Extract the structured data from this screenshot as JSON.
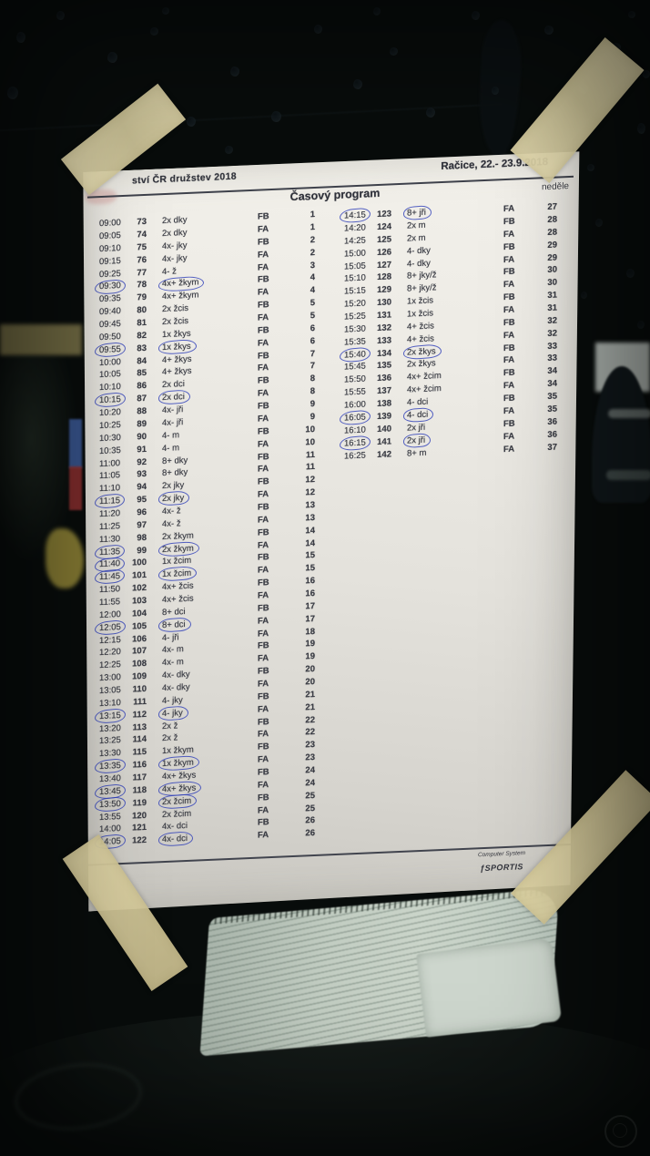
{
  "header": {
    "event_title_partial": "ství ČR družstev 2018",
    "location_date": "Račice,  22.- 23.9.2018",
    "program_title": "Časový program",
    "day_label": "neděle"
  },
  "footer": {
    "brand_line1": "Computer System",
    "brand_logo_glyph": "ƒ",
    "brand_line2": "SPORTIS"
  },
  "colors": {
    "ink_circle_blue": "#2c3cb8",
    "tape_beige": "#ddd3a6",
    "paper_white": "#edebe5"
  },
  "schedule": {
    "left": [
      {
        "t": "09:00",
        "n": "73",
        "e": "2x dky",
        "f": "FB",
        "r": "1",
        "tc": false,
        "ec": false
      },
      {
        "t": "09:05",
        "n": "74",
        "e": "2x dky",
        "f": "FA",
        "r": "1",
        "tc": false,
        "ec": false
      },
      {
        "t": "09:10",
        "n": "75",
        "e": "4x- jky",
        "f": "FB",
        "r": "2",
        "tc": false,
        "ec": false
      },
      {
        "t": "09:15",
        "n": "76",
        "e": "4x- jky",
        "f": "FA",
        "r": "2",
        "tc": false,
        "ec": false
      },
      {
        "t": "09:25",
        "n": "77",
        "e": "4- ž",
        "f": "FA",
        "r": "3",
        "tc": false,
        "ec": false
      },
      {
        "t": "09:30",
        "n": "78",
        "e": "4x+ žkym",
        "f": "FB",
        "r": "4",
        "tc": true,
        "ec": true
      },
      {
        "t": "09:35",
        "n": "79",
        "e": "4x+ žkym",
        "f": "FA",
        "r": "4",
        "tc": false,
        "ec": false
      },
      {
        "t": "09:40",
        "n": "80",
        "e": "2x žcis",
        "f": "FB",
        "r": "5",
        "tc": false,
        "ec": false
      },
      {
        "t": "09:45",
        "n": "81",
        "e": "2x žcis",
        "f": "FA",
        "r": "5",
        "tc": false,
        "ec": false
      },
      {
        "t": "09:50",
        "n": "82",
        "e": "1x žkys",
        "f": "FB",
        "r": "6",
        "tc": false,
        "ec": false
      },
      {
        "t": "09:55",
        "n": "83",
        "e": "1x žkys",
        "f": "FA",
        "r": "6",
        "tc": true,
        "ec": true
      },
      {
        "t": "10:00",
        "n": "84",
        "e": "4+ žkys",
        "f": "FB",
        "r": "7",
        "tc": false,
        "ec": false
      },
      {
        "t": "10:05",
        "n": "85",
        "e": "4+ žkys",
        "f": "FA",
        "r": "7",
        "tc": false,
        "ec": false
      },
      {
        "t": "10:10",
        "n": "86",
        "e": "2x dci",
        "f": "FB",
        "r": "8",
        "tc": false,
        "ec": false
      },
      {
        "t": "10:15",
        "n": "87",
        "e": "2x dci",
        "f": "FA",
        "r": "8",
        "tc": true,
        "ec": true
      },
      {
        "t": "10:20",
        "n": "88",
        "e": "4x- jři",
        "f": "FB",
        "r": "9",
        "tc": false,
        "ec": false
      },
      {
        "t": "10:25",
        "n": "89",
        "e": "4x- jři",
        "f": "FA",
        "r": "9",
        "tc": false,
        "ec": false
      },
      {
        "t": "10:30",
        "n": "90",
        "e": "4- m",
        "f": "FB",
        "r": "10",
        "tc": false,
        "ec": false
      },
      {
        "t": "10:35",
        "n": "91",
        "e": "4- m",
        "f": "FA",
        "r": "10",
        "tc": false,
        "ec": false
      },
      {
        "t": "11:00",
        "n": "92",
        "e": "8+ dky",
        "f": "FB",
        "r": "11",
        "tc": false,
        "ec": false
      },
      {
        "t": "11:05",
        "n": "93",
        "e": "8+ dky",
        "f": "FA",
        "r": "11",
        "tc": false,
        "ec": false
      },
      {
        "t": "11:10",
        "n": "94",
        "e": "2x jky",
        "f": "FB",
        "r": "12",
        "tc": false,
        "ec": false
      },
      {
        "t": "11:15",
        "n": "95",
        "e": "2x jky",
        "f": "FA",
        "r": "12",
        "tc": true,
        "ec": true
      },
      {
        "t": "11:20",
        "n": "96",
        "e": "4x- ž",
        "f": "FB",
        "r": "13",
        "tc": false,
        "ec": false
      },
      {
        "t": "11:25",
        "n": "97",
        "e": "4x- ž",
        "f": "FA",
        "r": "13",
        "tc": false,
        "ec": false
      },
      {
        "t": "11:30",
        "n": "98",
        "e": "2x žkym",
        "f": "FB",
        "r": "14",
        "tc": false,
        "ec": false
      },
      {
        "t": "11:35",
        "n": "99",
        "e": "2x žkym",
        "f": "FA",
        "r": "14",
        "tc": true,
        "ec": true
      },
      {
        "t": "11:40",
        "n": "100",
        "e": "1x žcim",
        "f": "FB",
        "r": "15",
        "tc": true,
        "ec": false
      },
      {
        "t": "11:45",
        "n": "101",
        "e": "1x žcim",
        "f": "FA",
        "r": "15",
        "tc": true,
        "ec": true
      },
      {
        "t": "11:50",
        "n": "102",
        "e": "4x+ žcis",
        "f": "FB",
        "r": "16",
        "tc": false,
        "ec": false
      },
      {
        "t": "11:55",
        "n": "103",
        "e": "4x+ žcis",
        "f": "FA",
        "r": "16",
        "tc": false,
        "ec": false
      },
      {
        "t": "12:00",
        "n": "104",
        "e": "8+ dci",
        "f": "FB",
        "r": "17",
        "tc": false,
        "ec": false
      },
      {
        "t": "12:05",
        "n": "105",
        "e": "8+ dci",
        "f": "FA",
        "r": "17",
        "tc": true,
        "ec": true
      },
      {
        "t": "12:15",
        "n": "106",
        "e": "4- jři",
        "f": "FA",
        "r": "18",
        "tc": false,
        "ec": false
      },
      {
        "t": "12:20",
        "n": "107",
        "e": "4x- m",
        "f": "FB",
        "r": "19",
        "tc": false,
        "ec": false
      },
      {
        "t": "12:25",
        "n": "108",
        "e": "4x- m",
        "f": "FA",
        "r": "19",
        "tc": false,
        "ec": false
      },
      {
        "t": "13:00",
        "n": "109",
        "e": "4x- dky",
        "f": "FB",
        "r": "20",
        "tc": false,
        "ec": false
      },
      {
        "t": "13:05",
        "n": "110",
        "e": "4x- dky",
        "f": "FA",
        "r": "20",
        "tc": false,
        "ec": false
      },
      {
        "t": "13:10",
        "n": "111",
        "e": "4- jky",
        "f": "FB",
        "r": "21",
        "tc": false,
        "ec": false
      },
      {
        "t": "13:15",
        "n": "112",
        "e": "4- jky",
        "f": "FA",
        "r": "21",
        "tc": true,
        "ec": true
      },
      {
        "t": "13:20",
        "n": "113",
        "e": "2x ž",
        "f": "FB",
        "r": "22",
        "tc": false,
        "ec": false
      },
      {
        "t": "13:25",
        "n": "114",
        "e": "2x ž",
        "f": "FA",
        "r": "22",
        "tc": false,
        "ec": false
      },
      {
        "t": "13:30",
        "n": "115",
        "e": "1x žkym",
        "f": "FB",
        "r": "23",
        "tc": false,
        "ec": false
      },
      {
        "t": "13:35",
        "n": "116",
        "e": "1x žkym",
        "f": "FA",
        "r": "23",
        "tc": true,
        "ec": true
      },
      {
        "t": "13:40",
        "n": "117",
        "e": "4x+ žkys",
        "f": "FB",
        "r": "24",
        "tc": false,
        "ec": false
      },
      {
        "t": "13:45",
        "n": "118",
        "e": "4x+ žkys",
        "f": "FA",
        "r": "24",
        "tc": true,
        "ec": true
      },
      {
        "t": "13:50",
        "n": "119",
        "e": "2x žcim",
        "f": "FB",
        "r": "25",
        "tc": true,
        "ec": true
      },
      {
        "t": "13:55",
        "n": "120",
        "e": "2x žcim",
        "f": "FA",
        "r": "25",
        "tc": false,
        "ec": false
      },
      {
        "t": "14:00",
        "n": "121",
        "e": "4x- dci",
        "f": "FB",
        "r": "26",
        "tc": false,
        "ec": false
      },
      {
        "t": "14:05",
        "n": "122",
        "e": "4x- dci",
        "f": "FA",
        "r": "26",
        "tc": true,
        "ec": true
      }
    ],
    "right": [
      {
        "t": "14:15",
        "n": "123",
        "e": "8+ jři",
        "f": "FA",
        "r": "27",
        "tc": true,
        "ec": true
      },
      {
        "t": "14:20",
        "n": "124",
        "e": "2x m",
        "f": "FB",
        "r": "28",
        "tc": false,
        "ec": false
      },
      {
        "t": "14:25",
        "n": "125",
        "e": "2x m",
        "f": "FA",
        "r": "28",
        "tc": false,
        "ec": false
      },
      {
        "t": "15:00",
        "n": "126",
        "e": "4- dky",
        "f": "FB",
        "r": "29",
        "tc": false,
        "ec": false
      },
      {
        "t": "15:05",
        "n": "127",
        "e": "4- dky",
        "f": "FA",
        "r": "29",
        "tc": false,
        "ec": false
      },
      {
        "t": "15:10",
        "n": "128",
        "e": "8+ jky/ž",
        "f": "FB",
        "r": "30",
        "tc": false,
        "ec": false
      },
      {
        "t": "15:15",
        "n": "129",
        "e": "8+ jky/ž",
        "f": "FA",
        "r": "30",
        "tc": false,
        "ec": false
      },
      {
        "t": "15:20",
        "n": "130",
        "e": "1x žcis",
        "f": "FB",
        "r": "31",
        "tc": false,
        "ec": false
      },
      {
        "t": "15:25",
        "n": "131",
        "e": "1x žcis",
        "f": "FA",
        "r": "31",
        "tc": false,
        "ec": false
      },
      {
        "t": "15:30",
        "n": "132",
        "e": "4+ žcis",
        "f": "FB",
        "r": "32",
        "tc": false,
        "ec": false
      },
      {
        "t": "15:35",
        "n": "133",
        "e": "4+ žcis",
        "f": "FA",
        "r": "32",
        "tc": false,
        "ec": false
      },
      {
        "t": "15:40",
        "n": "134",
        "e": "2x žkys",
        "f": "FB",
        "r": "33",
        "tc": true,
        "ec": true
      },
      {
        "t": "15:45",
        "n": "135",
        "e": "2x žkys",
        "f": "FA",
        "r": "33",
        "tc": false,
        "ec": false
      },
      {
        "t": "15:50",
        "n": "136",
        "e": "4x+ žcim",
        "f": "FB",
        "r": "34",
        "tc": false,
        "ec": false
      },
      {
        "t": "15:55",
        "n": "137",
        "e": "4x+ žcim",
        "f": "FA",
        "r": "34",
        "tc": false,
        "ec": false
      },
      {
        "t": "16:00",
        "n": "138",
        "e": "4- dci",
        "f": "FB",
        "r": "35",
        "tc": false,
        "ec": false
      },
      {
        "t": "16:05",
        "n": "139",
        "e": "4- dci",
        "f": "FA",
        "r": "35",
        "tc": true,
        "ec": true
      },
      {
        "t": "16:10",
        "n": "140",
        "e": "2x jři",
        "f": "FB",
        "r": "36",
        "tc": false,
        "ec": false
      },
      {
        "t": "16:15",
        "n": "141",
        "e": "2x jři",
        "f": "FA",
        "r": "36",
        "tc": true,
        "ec": true
      },
      {
        "t": "16:25",
        "n": "142",
        "e": "8+ m",
        "f": "FA",
        "r": "37",
        "tc": false,
        "ec": false
      }
    ]
  }
}
